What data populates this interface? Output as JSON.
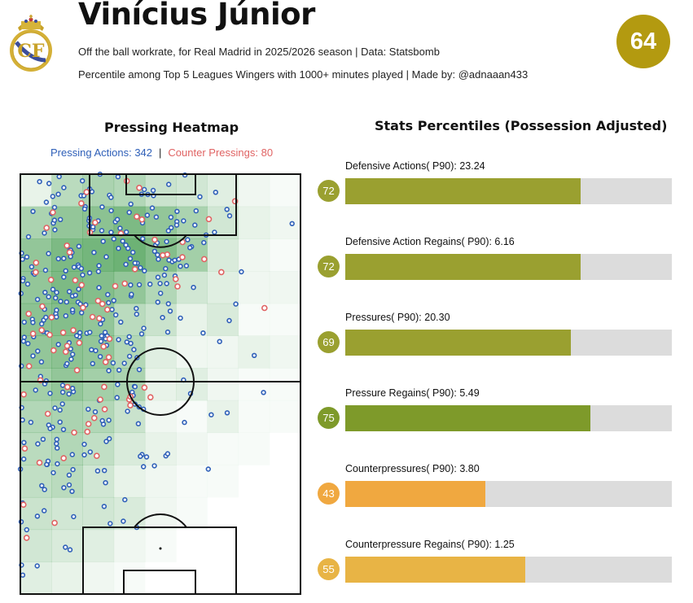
{
  "header": {
    "player_name": "Vinícius Júnior",
    "subtitle": "Off the ball workrate, for Real Madrid in 2025/2026 season | Data: Statsbomb",
    "caption": "Percentile among Top 5 Leagues Wingers with 1000+ minutes played | Made by: @adnaaan433",
    "overall_percentile": "64",
    "crest_lettering": "RMCF"
  },
  "colors": {
    "accent_gold": "#b39a10",
    "olive": "#9aa030",
    "green": "#7e9a2a",
    "orange": "#f0a840",
    "track": "#dcdcdc",
    "pressing": "#2e5fb8",
    "counter_pressing": "#e06363",
    "heat": "#3f9a4a"
  },
  "heatmap": {
    "title": "Pressing Heatmap",
    "pressing_label": "Pressing Actions: 342",
    "separator": "|",
    "counter_label": "Counter Pressings: 80",
    "pressing_actions": 342,
    "counter_pressings": 80
  },
  "stats": {
    "title": "Stats Percentiles (Possession Adjusted)",
    "items": [
      {
        "label": "Defensive Actions( P90): 23.24",
        "value": 23.24,
        "percentile": 72,
        "color": "#9aa030"
      },
      {
        "label": "Defensive Action Regains( P90): 6.16",
        "value": 6.16,
        "percentile": 72,
        "color": "#9aa030"
      },
      {
        "label": "Pressures( P90): 20.30",
        "value": 20.3,
        "percentile": 69,
        "color": "#9aa030"
      },
      {
        "label": "Pressure Regains( P90): 5.49",
        "value": 5.49,
        "percentile": 75,
        "color": "#7e9a2a"
      },
      {
        "label": "Counterpressures( P90): 3.80",
        "value": 3.8,
        "percentile": 43,
        "color": "#f0a840"
      },
      {
        "label": "Counterpressure Regains( P90): 1.25",
        "value": 1.25,
        "percentile": 55,
        "color": "#e8b445"
      }
    ]
  },
  "chart_data": [
    {
      "type": "heatmap",
      "title": "Pressing Heatmap",
      "series": [
        {
          "name": "Pressing Actions",
          "count": 342
        },
        {
          "name": "Counter Pressings",
          "count": 80
        }
      ],
      "grid": [
        [
          0.15,
          0.45,
          0.55,
          0.5,
          0.35,
          0.3,
          0.2,
          0.1,
          0.05
        ],
        [
          0.55,
          0.7,
          0.75,
          0.85,
          0.7,
          0.55,
          0.3,
          0.15,
          0.1
        ],
        [
          0.7,
          0.85,
          0.9,
          0.95,
          0.8,
          0.6,
          0.25,
          0.1,
          0.05
        ],
        [
          0.7,
          0.85,
          0.8,
          0.7,
          0.5,
          0.3,
          0.2,
          0.1,
          0.1
        ],
        [
          0.75,
          0.8,
          0.7,
          0.45,
          0.35,
          0.15,
          0.25,
          0.05,
          0.05
        ],
        [
          0.7,
          0.75,
          0.7,
          0.5,
          0.2,
          0.1,
          0.1,
          0.15,
          0.1
        ],
        [
          0.6,
          0.7,
          0.6,
          0.55,
          0.15,
          0.2,
          0.1,
          0.05,
          0.05
        ],
        [
          0.5,
          0.55,
          0.5,
          0.35,
          0.1,
          0.05,
          0.15,
          0.05,
          0.05
        ],
        [
          0.45,
          0.5,
          0.4,
          0.25,
          0.15,
          0.1,
          0.05,
          0.05,
          0.0
        ],
        [
          0.4,
          0.45,
          0.3,
          0.15,
          0.1,
          0.05,
          0.05,
          0.0,
          0.0
        ],
        [
          0.35,
          0.3,
          0.3,
          0.25,
          0.1,
          0.05,
          0.0,
          0.0,
          0.0
        ],
        [
          0.3,
          0.25,
          0.2,
          0.1,
          0.05,
          0.0,
          0.0,
          0.0,
          0.0
        ],
        [
          0.2,
          0.15,
          0.1,
          0.05,
          0.0,
          0.0,
          0.0,
          0.0,
          0.0
        ]
      ]
    },
    {
      "type": "bar",
      "title": "Stats Percentiles (Possession Adjusted)",
      "categories": [
        "Defensive Actions",
        "Defensive Action Regains",
        "Pressures",
        "Pressure Regains",
        "Counterpressures",
        "Counterpressure Regains"
      ],
      "values": [
        72,
        72,
        69,
        75,
        43,
        55
      ],
      "ylim": [
        0,
        100
      ]
    }
  ]
}
